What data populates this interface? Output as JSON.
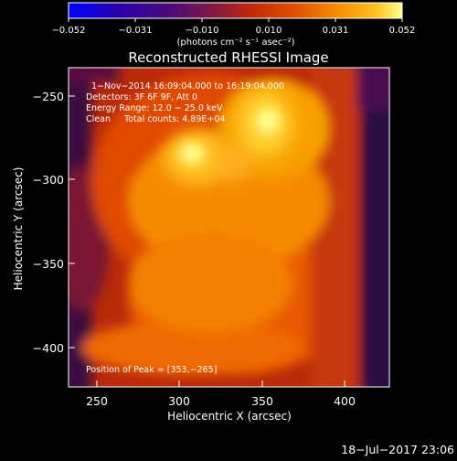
{
  "colorbar": {
    "ticks": [
      "−0.052",
      "−0.031",
      "−0.010",
      "0.010",
      "0.031",
      "0.052"
    ],
    "units": "(photons cm⁻² s⁻¹ asec⁻²)"
  },
  "chart_data": {
    "type": "heatmap",
    "title": "Reconstructed RHESSI Image",
    "xlabel": "Heliocentric X (arcsec)",
    "ylabel": "Heliocentric Y (arcsec)",
    "xlim": [
      233,
      427
    ],
    "ylim": [
      -423,
      -233
    ],
    "xticks": [
      "250",
      "300",
      "350",
      "400"
    ],
    "yticks": [
      "−250",
      "−300",
      "−350",
      "−400"
    ],
    "colorbar_range": [
      -0.052,
      0.052
    ],
    "colormap": [
      "#0000ff",
      "#2a00a8",
      "#4b0a7a",
      "#8a1a3e",
      "#c02a08",
      "#e05000",
      "#f58a00",
      "#ffc020",
      "#ffff90"
    ],
    "sources": [
      {
        "x": 309,
        "y": -283,
        "relative_intensity": 0.93
      },
      {
        "x": 353,
        "y": -265,
        "relative_intensity": 1.0
      }
    ],
    "annotations": [
      "1−Nov−2014 16:09:04.000 to 16:19:04.000",
      "Detectors: 3F 6F 9F, Att 0",
      "Energy Range: 12.0 − 25.0 keV",
      "Clean     Total counts: 4.89E+04",
      "Position of Peak = [353,−265]"
    ],
    "footer": "18−Jul−2017 23:06"
  }
}
